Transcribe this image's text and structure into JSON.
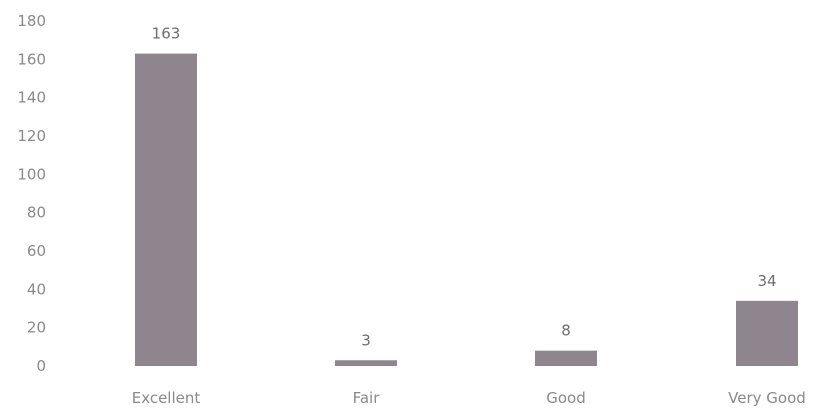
{
  "chart_data": {
    "type": "bar",
    "categories": [
      "Excellent",
      "Fair",
      "Good",
      "Very Good"
    ],
    "values": [
      163,
      3,
      8,
      34
    ],
    "data_labels": [
      "163",
      "3",
      "8",
      "34"
    ],
    "title": "",
    "xlabel": "",
    "ylabel": "",
    "ylim": [
      0,
      180
    ],
    "yticks": [
      "0",
      "20",
      "40",
      "60",
      "80",
      "100",
      "120",
      "140",
      "160",
      "180"
    ],
    "grid": false,
    "legend": "none",
    "bar_color": "#8e858f"
  }
}
